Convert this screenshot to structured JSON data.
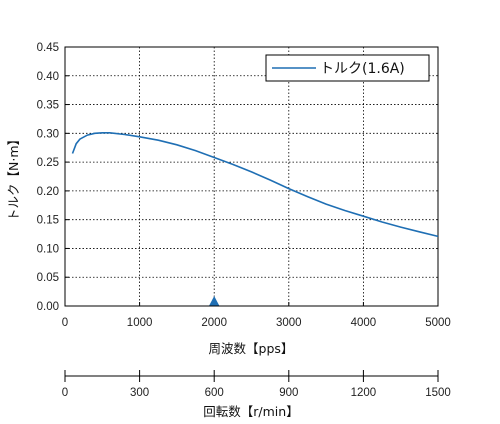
{
  "chart_data": {
    "type": "line",
    "xlabel": "周波数【pps】",
    "ylabel": "トルク【N·m】",
    "xlim": [
      0,
      5000
    ],
    "ylim": [
      0.0,
      0.45
    ],
    "x_ticks": [
      "0",
      "1000",
      "2000",
      "3000",
      "4000",
      "5000"
    ],
    "y_ticks": [
      "0.00",
      "0.05",
      "0.10",
      "0.15",
      "0.20",
      "0.25",
      "0.30",
      "0.35",
      "0.40",
      "0.45"
    ],
    "grid": true,
    "legend_position": "top-right",
    "series": [
      {
        "name": "トルク(1.6A)",
        "color": "#1f6fb4",
        "points": [
          [
            100,
            0.265
          ],
          [
            150,
            0.282
          ],
          [
            200,
            0.29
          ],
          [
            300,
            0.297
          ],
          [
            400,
            0.3
          ],
          [
            500,
            0.301
          ],
          [
            600,
            0.301
          ],
          [
            800,
            0.298
          ],
          [
            1000,
            0.294
          ],
          [
            1250,
            0.288
          ],
          [
            1500,
            0.28
          ],
          [
            1750,
            0.27
          ],
          [
            2000,
            0.258
          ],
          [
            2250,
            0.246
          ],
          [
            2500,
            0.233
          ],
          [
            2750,
            0.219
          ],
          [
            3000,
            0.204
          ],
          [
            3250,
            0.19
          ],
          [
            3500,
            0.177
          ],
          [
            3750,
            0.166
          ],
          [
            4000,
            0.156
          ],
          [
            4250,
            0.146
          ],
          [
            4500,
            0.137
          ],
          [
            4750,
            0.129
          ],
          [
            5000,
            0.121
          ]
        ]
      }
    ],
    "marker": {
      "x": 2000,
      "shape": "triangle-up",
      "color": "#1f6fb4"
    },
    "secondary_axis": {
      "label": "回転数【r/min】",
      "range": [
        0,
        1500
      ],
      "ticks": [
        "0",
        "300",
        "600",
        "900",
        "1200",
        "1500"
      ]
    }
  }
}
